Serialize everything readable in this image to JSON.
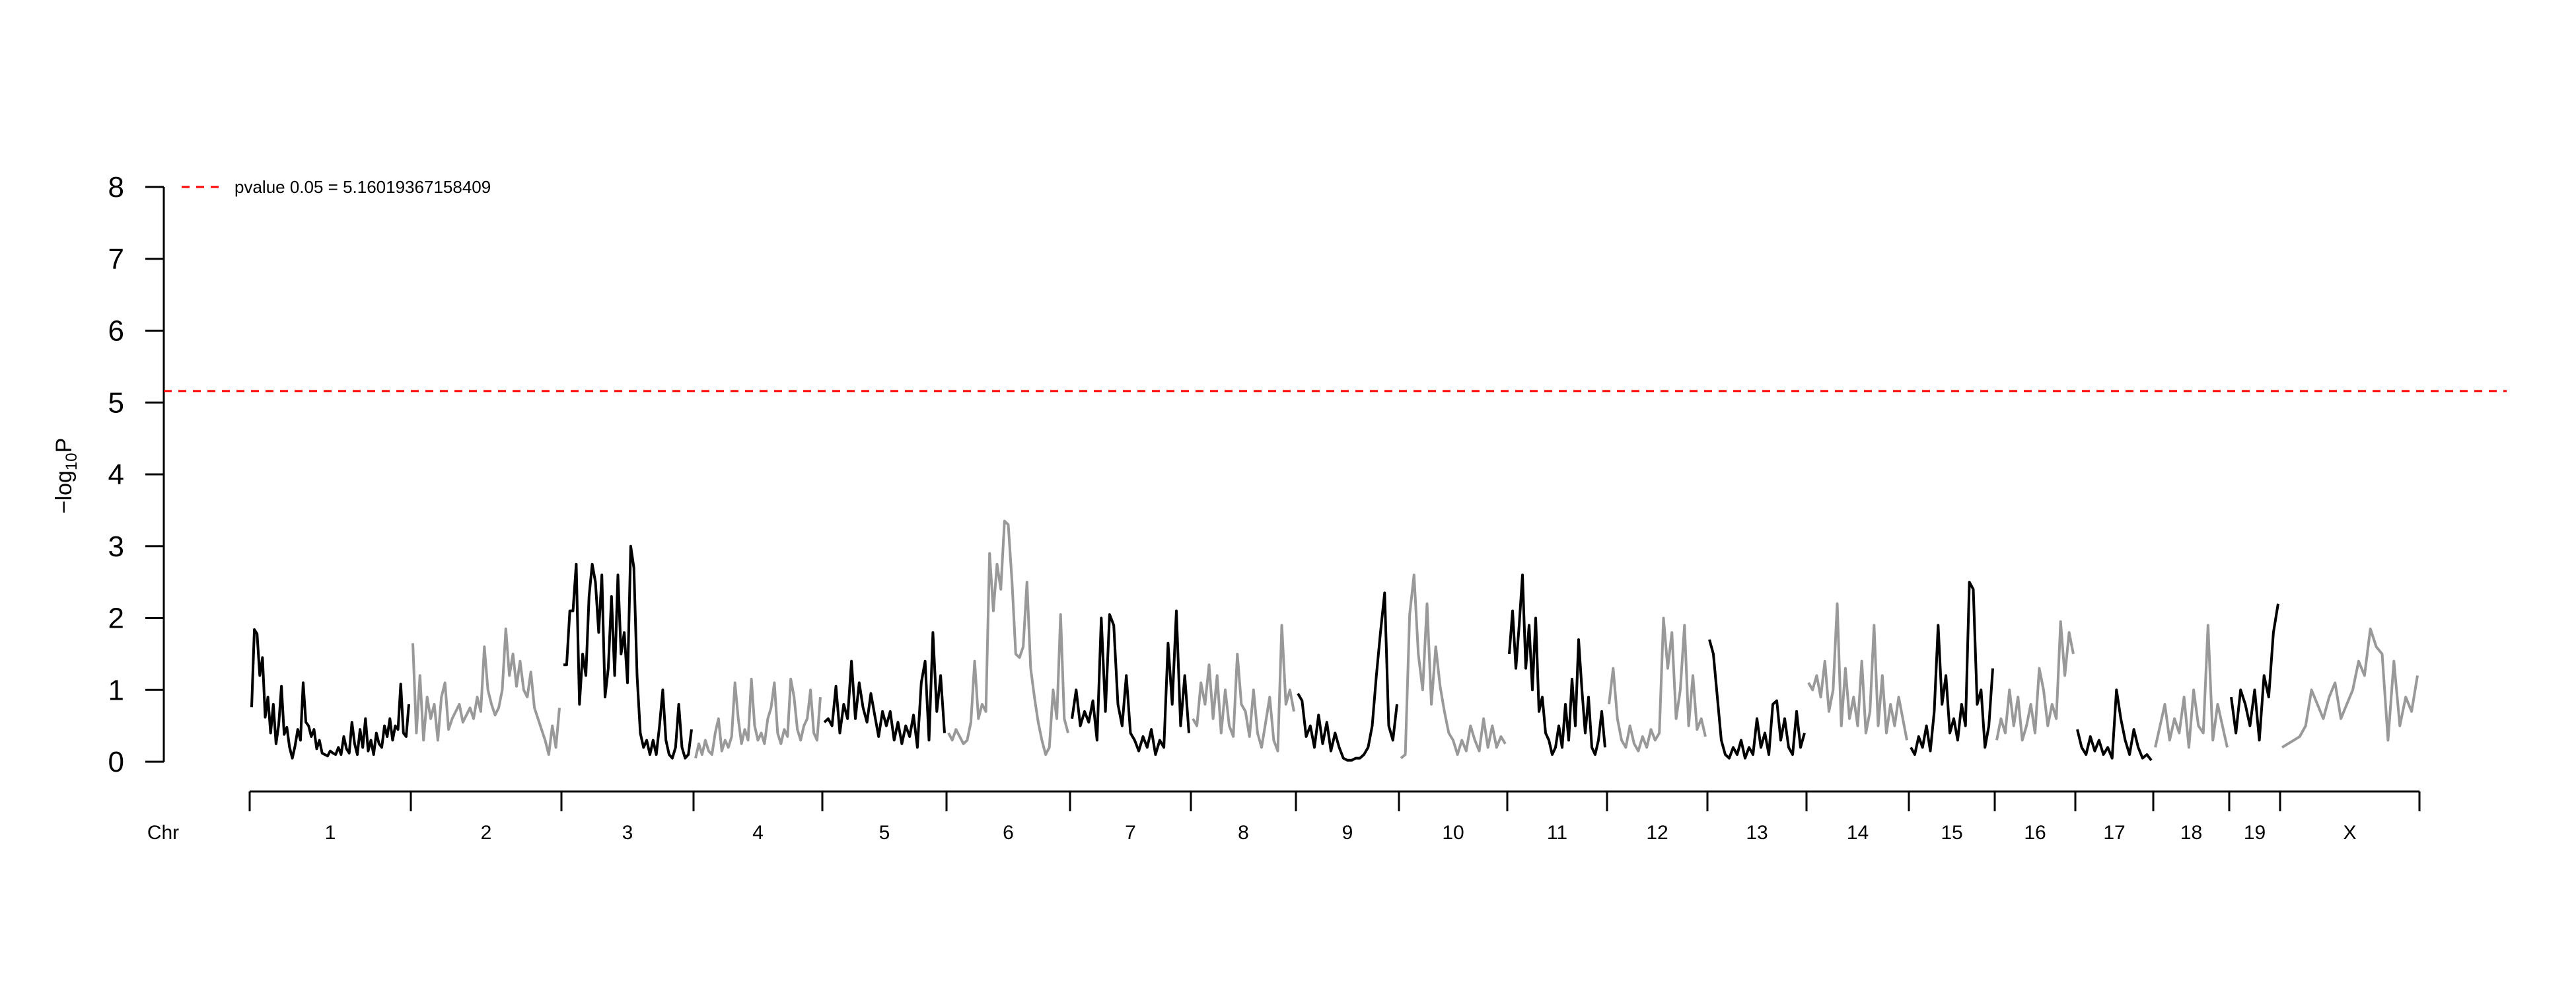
{
  "chart_data": {
    "type": "line",
    "title": "",
    "xlabel": "Chr",
    "ylabel": "−log10P",
    "ylim": [
      0,
      8
    ],
    "yticks": [
      "0",
      "1",
      "2",
      "3",
      "4",
      "5",
      "6",
      "7",
      "8"
    ],
    "grid": false,
    "legend": {
      "position": "top-left",
      "text": "pvalue 0.05 = 5.16019367158409"
    },
    "threshold": {
      "value": 5.16019367158409,
      "color": "#FF0000",
      "style": "dashed"
    },
    "colors": {
      "odd": "#000000",
      "even": "#999999"
    },
    "chromosomes": [
      {
        "name": "1",
        "color": "#000000",
        "y": [
          0.76,
          1.84,
          1.78,
          1.2,
          1.45,
          0.62,
          0.9,
          0.4,
          0.8,
          0.25,
          0.52,
          1.05,
          0.38,
          0.48,
          0.2,
          0.05,
          0.22,
          0.45,
          0.3,
          1.1,
          0.55,
          0.5,
          0.35,
          0.45,
          0.18,
          0.3,
          0.12,
          0.1,
          0.08,
          0.15,
          0.12,
          0.1,
          0.2,
          0.1,
          0.35,
          0.18,
          0.12,
          0.55,
          0.25,
          0.1,
          0.45,
          0.2,
          0.6,
          0.15,
          0.3,
          0.1,
          0.4,
          0.25,
          0.2,
          0.5,
          0.35,
          0.6,
          0.3,
          0.5,
          0.45,
          1.08,
          0.4,
          0.35,
          0.8
        ]
      },
      {
        "name": "2",
        "color": "#999999",
        "y": [
          1.65,
          0.4,
          1.2,
          0.3,
          0.9,
          0.6,
          0.8,
          0.3,
          0.9,
          1.1,
          0.45,
          0.6,
          0.7,
          0.8,
          0.55,
          0.65,
          0.75,
          0.6,
          0.9,
          0.7,
          1.6,
          1.0,
          0.8,
          0.65,
          0.75,
          1.0,
          1.85,
          1.2,
          1.5,
          1.05,
          1.4,
          1.0,
          0.9,
          1.25,
          0.75,
          0.6,
          0.45,
          0.3,
          0.1,
          0.5,
          0.2,
          0.75
        ]
      },
      {
        "name": "3",
        "color": "#000000",
        "y": [
          1.35,
          1.35,
          2.1,
          2.1,
          2.75,
          0.8,
          1.5,
          1.2,
          2.3,
          2.75,
          2.5,
          1.8,
          2.6,
          0.9,
          1.3,
          2.3,
          1.2,
          2.6,
          1.5,
          1.8,
          1.1,
          3.0,
          2.7,
          1.2,
          0.4,
          0.2,
          0.3,
          0.1,
          0.3,
          0.1,
          0.5,
          1.0,
          0.3,
          0.1,
          0.05,
          0.2,
          0.8,
          0.2,
          0.05,
          0.1,
          0.45
        ]
      },
      {
        "name": "4",
        "color": "#999999",
        "y": [
          0.05,
          0.25,
          0.1,
          0.3,
          0.15,
          0.1,
          0.4,
          0.6,
          0.15,
          0.3,
          0.2,
          0.35,
          1.1,
          0.6,
          0.25,
          0.45,
          0.3,
          1.15,
          0.5,
          0.3,
          0.4,
          0.25,
          0.6,
          0.75,
          1.1,
          0.4,
          0.25,
          0.45,
          0.35,
          1.15,
          0.9,
          0.45,
          0.3,
          0.5,
          0.6,
          1.0,
          0.4,
          0.3,
          0.9
        ]
      },
      {
        "name": "5",
        "color": "#000000",
        "y": [
          0.55,
          0.6,
          0.5,
          1.05,
          0.4,
          0.8,
          0.6,
          1.4,
          0.6,
          1.1,
          0.75,
          0.55,
          0.95,
          0.65,
          0.35,
          0.7,
          0.5,
          0.7,
          0.3,
          0.55,
          0.25,
          0.5,
          0.35,
          0.65,
          0.2,
          1.1,
          1.4,
          0.3,
          1.8,
          0.7,
          1.2,
          0.4
        ]
      },
      {
        "name": "6",
        "color": "#999999",
        "y": [
          0.4,
          0.3,
          0.45,
          0.35,
          0.25,
          0.3,
          0.55,
          1.4,
          0.6,
          0.8,
          0.7,
          2.9,
          2.1,
          2.75,
          2.4,
          3.35,
          3.3,
          2.5,
          1.5,
          1.45,
          1.6,
          2.5,
          1.3,
          0.9,
          0.55,
          0.3,
          0.1,
          0.2,
          1.0,
          0.6,
          2.05,
          0.6,
          0.4
        ]
      },
      {
        "name": "7",
        "color": "#000000",
        "y": [
          0.6,
          1.0,
          0.5,
          0.7,
          0.55,
          0.85,
          0.3,
          2.0,
          0.7,
          2.05,
          1.9,
          0.8,
          0.5,
          1.2,
          0.4,
          0.3,
          0.15,
          0.35,
          0.2,
          0.45,
          0.1,
          0.3,
          0.2,
          1.65,
          0.8,
          2.1,
          0.5,
          1.2,
          0.4
        ]
      },
      {
        "name": "8",
        "color": "#999999",
        "y": [
          0.6,
          0.5,
          1.1,
          0.8,
          1.35,
          0.6,
          1.2,
          0.4,
          1.0,
          0.5,
          0.35,
          1.5,
          0.8,
          0.7,
          0.35,
          1.0,
          0.4,
          0.2,
          0.55,
          0.9,
          0.3,
          0.15,
          1.9,
          0.8,
          1.0,
          0.7
        ]
      },
      {
        "name": "9",
        "color": "#000000",
        "y": [
          0.95,
          0.85,
          0.35,
          0.5,
          0.2,
          0.65,
          0.25,
          0.55,
          0.15,
          0.4,
          0.2,
          0.05,
          0.02,
          0.02,
          0.05,
          0.05,
          0.1,
          0.2,
          0.5,
          1.2,
          1.8,
          2.35,
          0.5,
          0.3,
          0.8
        ]
      },
      {
        "name": "10",
        "color": "#999999",
        "y": [
          0.05,
          0.1,
          2.05,
          2.6,
          1.5,
          1.0,
          2.2,
          0.8,
          1.6,
          1.05,
          0.7,
          0.4,
          0.3,
          0.1,
          0.3,
          0.15,
          0.5,
          0.3,
          0.15,
          0.6,
          0.2,
          0.5,
          0.2,
          0.35,
          0.25
        ]
      },
      {
        "name": "11",
        "color": "#000000",
        "y": [
          1.5,
          2.1,
          1.3,
          1.9,
          2.6,
          1.3,
          1.9,
          1.0,
          2.0,
          0.7,
          0.9,
          0.4,
          0.3,
          0.1,
          0.2,
          0.5,
          0.2,
          0.8,
          0.3,
          1.15,
          0.5,
          1.7,
          1.0,
          0.4,
          0.9,
          0.2,
          0.1,
          0.3,
          0.7,
          0.2
        ]
      },
      {
        "name": "12",
        "color": "#999999",
        "y": [
          0.8,
          1.3,
          0.6,
          0.3,
          0.2,
          0.5,
          0.25,
          0.15,
          0.35,
          0.2,
          0.45,
          0.3,
          0.4,
          2.0,
          1.3,
          1.8,
          0.6,
          1.0,
          1.9,
          0.5,
          1.2,
          0.45,
          0.6,
          0.35
        ]
      },
      {
        "name": "13",
        "color": "#000000",
        "y": [
          1.7,
          1.5,
          0.9,
          0.3,
          0.1,
          0.05,
          0.2,
          0.1,
          0.3,
          0.05,
          0.2,
          0.1,
          0.6,
          0.2,
          0.4,
          0.1,
          0.8,
          0.85,
          0.3,
          0.6,
          0.2,
          0.1,
          0.7,
          0.2,
          0.4
        ]
      },
      {
        "name": "14",
        "color": "#999999",
        "y": [
          1.1,
          1.0,
          1.2,
          0.9,
          1.4,
          0.7,
          1.0,
          2.2,
          0.5,
          1.3,
          0.6,
          0.9,
          0.5,
          1.4,
          0.4,
          0.7,
          1.9,
          0.5,
          1.2,
          0.4,
          0.8,
          0.5,
          0.9,
          0.6,
          0.3
        ]
      },
      {
        "name": "15",
        "color": "#000000",
        "y": [
          0.2,
          0.1,
          0.35,
          0.2,
          0.5,
          0.15,
          0.7,
          1.9,
          0.8,
          1.2,
          0.4,
          0.6,
          0.3,
          0.8,
          0.5,
          2.5,
          2.4,
          0.8,
          1.0,
          0.2,
          0.5,
          1.3
        ]
      },
      {
        "name": "16",
        "color": "#999999",
        "y": [
          0.3,
          0.6,
          0.4,
          1.0,
          0.5,
          0.9,
          0.3,
          0.5,
          0.8,
          0.4,
          1.3,
          1.0,
          0.5,
          0.8,
          0.6,
          1.95,
          1.2,
          1.8,
          1.5
        ]
      },
      {
        "name": "17",
        "color": "#000000",
        "y": [
          0.45,
          0.2,
          0.1,
          0.35,
          0.15,
          0.3,
          0.1,
          0.2,
          0.05,
          1.0,
          0.6,
          0.3,
          0.1,
          0.45,
          0.2,
          0.05,
          0.1,
          0.02
        ]
      },
      {
        "name": "18",
        "color": "#999999",
        "y": [
          0.2,
          0.5,
          0.8,
          0.3,
          0.6,
          0.4,
          0.9,
          0.2,
          1.0,
          0.5,
          0.4,
          1.9,
          0.3,
          0.8,
          0.5,
          0.2
        ]
      },
      {
        "name": "19",
        "color": "#000000",
        "y": [
          0.9,
          0.4,
          1.0,
          0.8,
          0.5,
          1.0,
          0.3,
          1.2,
          0.9,
          1.8,
          2.2
        ]
      },
      {
        "name": "X",
        "color": "#999999",
        "y": [
          0.2,
          0.25,
          0.3,
          0.35,
          0.5,
          1.0,
          0.8,
          0.6,
          0.9,
          1.1,
          0.6,
          0.8,
          1.0,
          1.4,
          1.2,
          1.85,
          1.6,
          1.5,
          0.3,
          1.4,
          0.5,
          0.9,
          0.7,
          1.2
        ]
      }
    ]
  }
}
